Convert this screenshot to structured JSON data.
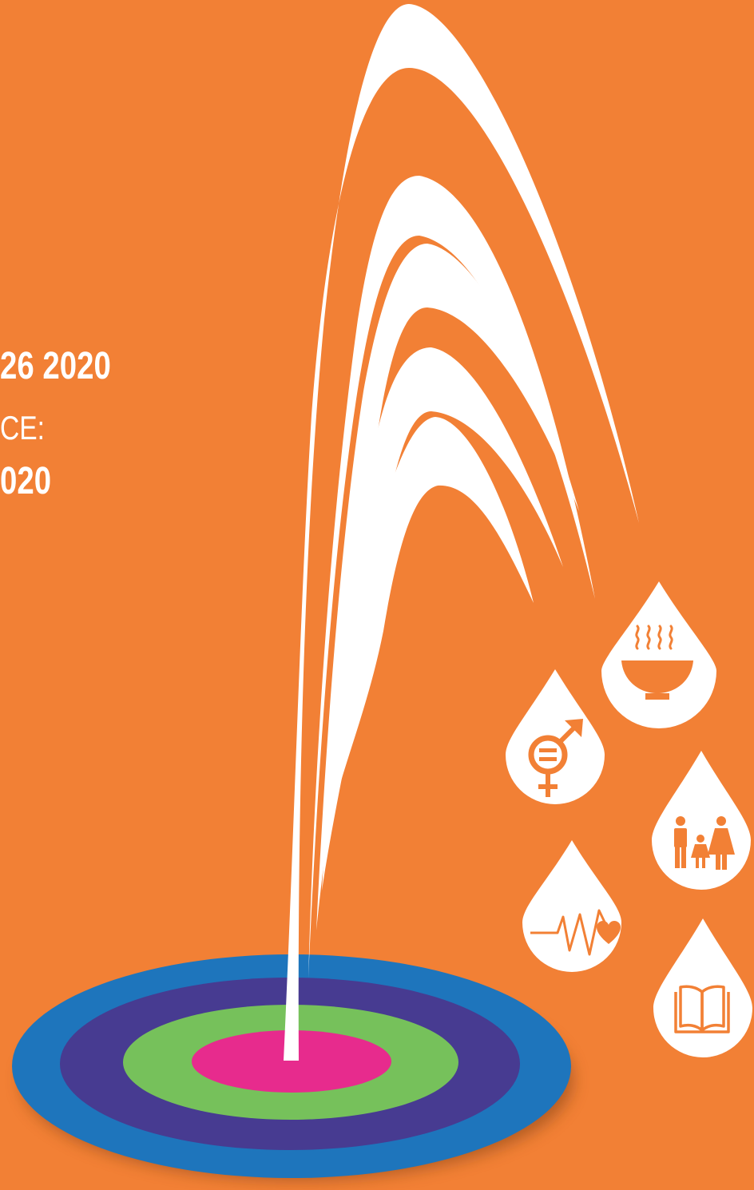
{
  "texts": {
    "line1": "26 2020",
    "line2": "CE:",
    "line3": "020"
  },
  "colors": {
    "background": "#F28035",
    "fountain": "#FFFFFF",
    "ring_outer": "#1E75BC",
    "ring_purple": "#473B91",
    "ring_green": "#76C15B",
    "ring_center": "#E72B8D",
    "shadow": "#7A3C13"
  },
  "icons": [
    "bowl-icon",
    "gender-equality-icon",
    "family-icon",
    "health-heartbeat-icon",
    "education-book-icon"
  ]
}
